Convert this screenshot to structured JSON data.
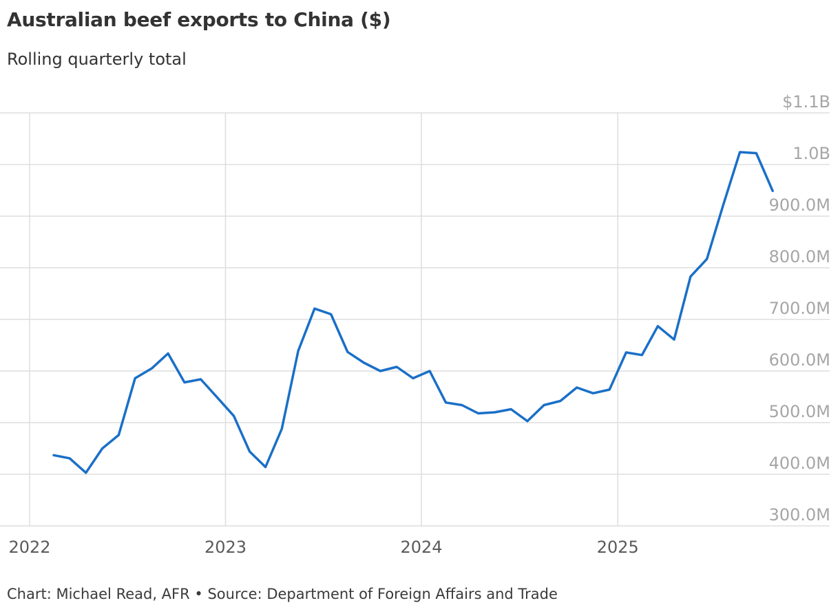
{
  "header": {
    "title": "Australian beef exports to China ($)",
    "subtitle": "Rolling quarterly total"
  },
  "footer": {
    "credit": "Chart: Michael Read, AFR • Source: Department of Foreign Affairs and Trade"
  },
  "colors": {
    "line": "#1a6fc7",
    "grid": "#dddddd",
    "ytick": "#a6a6a6",
    "xtick": "#5a5a5a"
  },
  "chart_data": {
    "type": "line",
    "title": "Australian beef exports to China ($)",
    "subtitle": "Rolling quarterly total",
    "xlabel": "",
    "ylabel": "",
    "ylim": [
      300,
      1100
    ],
    "y_unit": "millions of AUD",
    "grid": true,
    "y_axis_position": "right",
    "y_tick_values": [
      300,
      400,
      500,
      600,
      700,
      800,
      900,
      1000,
      1100
    ],
    "y_tick_labels": [
      "300.0M",
      "400.0M",
      "500.0M",
      "600.0M",
      "700.0M",
      "800.0M",
      "900.0M",
      "1.0B",
      "$1.1B"
    ],
    "x_tick_values": [
      "2022-01-01",
      "2023-01-01",
      "2024-01-01",
      "2025-01-01"
    ],
    "x_tick_labels": [
      "2022",
      "2023",
      "2024",
      "2025"
    ],
    "x_range": [
      "2022-01-01",
      "2025-12-31"
    ],
    "series": [
      {
        "x": [
          "2022-02",
          "2022-03",
          "2022-04",
          "2022-05",
          "2022-06",
          "2022-07",
          "2022-08",
          "2022-09",
          "2022-10",
          "2022-11",
          "2022-12",
          "2023-01",
          "2023-02",
          "2023-03",
          "2023-04",
          "2023-05",
          "2023-06",
          "2023-07",
          "2023-08",
          "2023-09",
          "2023-10",
          "2023-11",
          "2023-12",
          "2024-01",
          "2024-02",
          "2024-03",
          "2024-04",
          "2024-05",
          "2024-06",
          "2024-07",
          "2024-08",
          "2024-09",
          "2024-10",
          "2024-11",
          "2024-12",
          "2025-01",
          "2025-02",
          "2025-03",
          "2025-04",
          "2025-05",
          "2025-06",
          "2025-07",
          "2025-08",
          "2025-09",
          "2025-10"
        ],
        "values": [
          437,
          431,
          403,
          450,
          476,
          586,
          605,
          634,
          578,
          584,
          549,
          513,
          444,
          414,
          488,
          639,
          721,
          710,
          637,
          616,
          600,
          608,
          586,
          600,
          539,
          534,
          518,
          520,
          526,
          503,
          534,
          542,
          568,
          557,
          564,
          636,
          631,
          687,
          661,
          783,
          817,
          922,
          1024,
          1022,
          949
        ]
      }
    ]
  }
}
